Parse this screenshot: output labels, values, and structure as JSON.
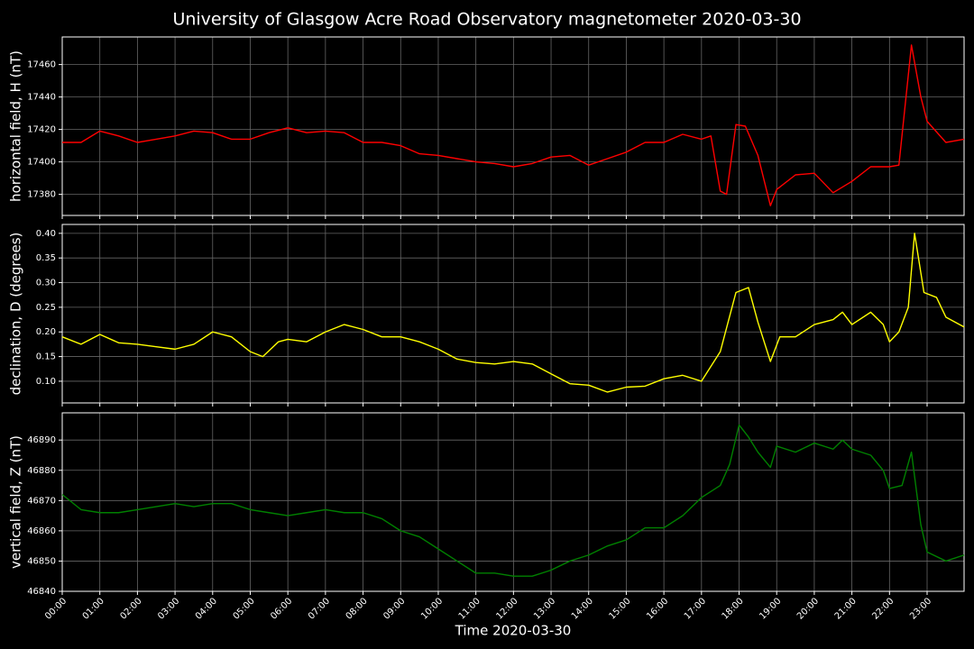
{
  "chart_data": [
    {
      "type": "line",
      "title": "University of Glasgow Acre Road Observatory magnetometer 2020-03-30",
      "ylabel": "horizontal field, H (nT)",
      "x": [
        "00:00",
        "00:30",
        "01:00",
        "01:30",
        "02:00",
        "02:30",
        "03:00",
        "03:30",
        "04:00",
        "04:30",
        "05:00",
        "05:30",
        "06:00",
        "06:30",
        "07:00",
        "07:30",
        "08:00",
        "08:30",
        "09:00",
        "09:30",
        "10:00",
        "10:30",
        "11:00",
        "11:30",
        "12:00",
        "12:30",
        "13:00",
        "13:30",
        "14:00",
        "14:30",
        "15:00",
        "15:30",
        "16:00",
        "16:30",
        "17:00",
        "17:15",
        "17:30",
        "17:40",
        "17:55",
        "18:10",
        "18:30",
        "18:50",
        "19:00",
        "19:30",
        "20:00",
        "20:30",
        "21:00",
        "21:30",
        "22:00",
        "22:15",
        "22:35",
        "22:50",
        "23:00",
        "23:30",
        "23:59"
      ],
      "series": [
        {
          "color": "#ff0000",
          "values": [
            17412,
            17412,
            17419,
            17416,
            17412,
            17414,
            17416,
            17419,
            17418,
            17414,
            17414,
            17418,
            17421,
            17418,
            17419,
            17418,
            17412,
            17412,
            17410,
            17405,
            17404,
            17402,
            17400,
            17399,
            17397,
            17399,
            17403,
            17404,
            17398,
            17402,
            17406,
            17412,
            17412,
            17417,
            17414,
            17416,
            17382,
            17380,
            17423,
            17422,
            17404,
            17373,
            17383,
            17392,
            17393,
            17381,
            17388,
            17397,
            17397,
            17398,
            17472,
            17440,
            17425,
            17412,
            17414
          ]
        }
      ],
      "xlim": [
        "00:00",
        "23:59"
      ],
      "ylim": [
        17367,
        17477
      ],
      "yticks": [
        17380,
        17400,
        17420,
        17440,
        17460
      ],
      "grid": true
    },
    {
      "type": "line",
      "ylabel": "declination, D (degrees)",
      "x": [
        "00:00",
        "00:30",
        "01:00",
        "01:30",
        "02:00",
        "02:30",
        "03:00",
        "03:30",
        "04:00",
        "04:30",
        "05:00",
        "05:20",
        "05:45",
        "06:00",
        "06:30",
        "07:00",
        "07:30",
        "08:00",
        "08:30",
        "09:00",
        "09:30",
        "10:00",
        "10:30",
        "11:00",
        "11:30",
        "12:00",
        "12:30",
        "13:00",
        "13:30",
        "14:00",
        "14:30",
        "15:00",
        "15:30",
        "16:00",
        "16:30",
        "17:00",
        "17:30",
        "17:55",
        "18:15",
        "18:30",
        "18:50",
        "19:05",
        "19:30",
        "20:00",
        "20:30",
        "20:45",
        "21:00",
        "21:30",
        "21:50",
        "22:00",
        "22:15",
        "22:30",
        "22:40",
        "22:55",
        "23:15",
        "23:30",
        "23:59"
      ],
      "series": [
        {
          "color": "#ffff00",
          "values": [
            0.19,
            0.175,
            0.195,
            0.178,
            0.175,
            0.17,
            0.165,
            0.175,
            0.2,
            0.19,
            0.16,
            0.15,
            0.18,
            0.185,
            0.18,
            0.2,
            0.215,
            0.205,
            0.19,
            0.19,
            0.18,
            0.165,
            0.145,
            0.138,
            0.135,
            0.14,
            0.135,
            0.115,
            0.095,
            0.092,
            0.078,
            0.088,
            0.09,
            0.105,
            0.112,
            0.1,
            0.16,
            0.28,
            0.29,
            0.22,
            0.14,
            0.19,
            0.19,
            0.215,
            0.225,
            0.24,
            0.215,
            0.24,
            0.215,
            0.18,
            0.2,
            0.25,
            0.4,
            0.28,
            0.27,
            0.23,
            0.21
          ]
        }
      ],
      "xlim": [
        "00:00",
        "23:59"
      ],
      "ylim": [
        0.056,
        0.418
      ],
      "yticks": [
        {
          "value": 0.1,
          "label": "0.10"
        },
        0.15,
        {
          "value": 0.2,
          "label": "0.20"
        },
        0.25,
        {
          "value": 0.3,
          "label": "0.30"
        },
        0.35,
        {
          "value": 0.4,
          "label": "0.40"
        }
      ],
      "grid": true
    },
    {
      "type": "line",
      "ylabel": "vertical field, Z (nT)",
      "xlabel": "Time 2020-03-30",
      "x": [
        "00:00",
        "00:30",
        "01:00",
        "01:30",
        "02:00",
        "02:30",
        "03:00",
        "03:30",
        "04:00",
        "04:30",
        "05:00",
        "05:30",
        "06:00",
        "06:30",
        "07:00",
        "07:30",
        "08:00",
        "08:30",
        "09:00",
        "09:30",
        "10:00",
        "10:30",
        "11:00",
        "11:30",
        "12:00",
        "12:30",
        "13:00",
        "13:30",
        "14:00",
        "14:30",
        "15:00",
        "15:30",
        "16:00",
        "16:30",
        "17:00",
        "17:30",
        "17:45",
        "18:00",
        "18:15",
        "18:30",
        "18:50",
        "19:00",
        "19:30",
        "20:00",
        "20:30",
        "20:45",
        "21:00",
        "21:30",
        "21:50",
        "22:00",
        "22:20",
        "22:35",
        "22:50",
        "23:00",
        "23:30",
        "23:59"
      ],
      "series": [
        {
          "color": "#008000",
          "values": [
            46872,
            46867,
            46866,
            46866,
            46867,
            46868,
            46869,
            46868,
            46869,
            46869,
            46867,
            46866,
            46865,
            46866,
            46867,
            46866,
            46866,
            46864,
            46860,
            46858,
            46854,
            46850,
            46846,
            46846,
            46845,
            46845,
            46847,
            46850,
            46852,
            46855,
            46857,
            46861,
            46861,
            46865,
            46871,
            46875,
            46882,
            46895,
            46891,
            46886,
            46881,
            46888,
            46886,
            46889,
            46887,
            46890,
            46887,
            46885,
            46880,
            46874,
            46875,
            46886,
            46862,
            46853,
            46850,
            46852
          ]
        }
      ],
      "xlim": [
        "00:00",
        "23:59"
      ],
      "ylim": [
        46840,
        46899
      ],
      "yticks": [
        46840,
        46850,
        46860,
        46870,
        46880,
        46890
      ],
      "xticks": [
        "00:00",
        "01:00",
        "02:00",
        "03:00",
        "04:00",
        "05:00",
        "06:00",
        "07:00",
        "08:00",
        "09:00",
        "10:00",
        "11:00",
        "12:00",
        "13:00",
        "14:00",
        "15:00",
        "16:00",
        "17:00",
        "18:00",
        "19:00",
        "20:00",
        "21:00",
        "22:00",
        "23:00"
      ],
      "grid": true
    }
  ]
}
